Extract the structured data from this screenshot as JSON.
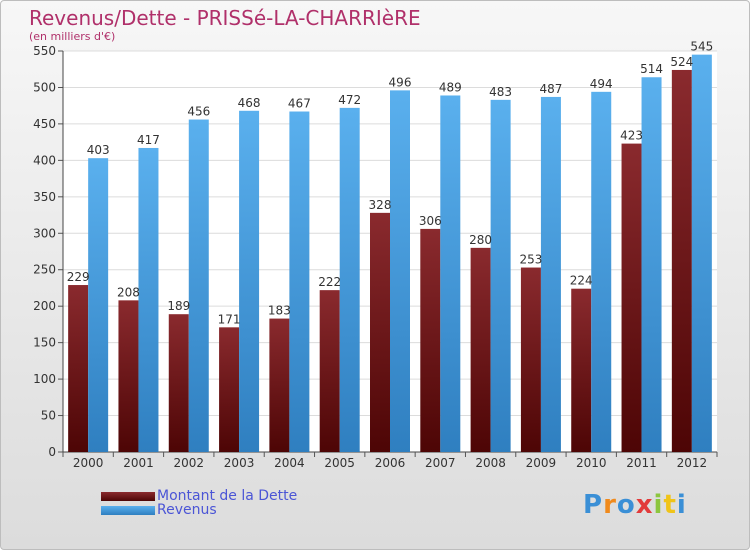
{
  "header": {
    "title": "Revenus/Dette - PRISSé-LA-CHARRIèRE",
    "subtitle": "(en milliers d'€)"
  },
  "logo": {
    "text": "Proxiti"
  },
  "colors": {
    "debt": "#7a1a1f",
    "revenue": "#4aa3e2",
    "title": "#b0306a",
    "legend_text": "#4b55d6"
  },
  "chart_data": {
    "type": "bar",
    "categories": [
      "2000",
      "2001",
      "2002",
      "2003",
      "2004",
      "2005",
      "2006",
      "2007",
      "2008",
      "2009",
      "2010",
      "2011",
      "2012"
    ],
    "series": [
      {
        "name": "Montant de la Dette",
        "values": [
          229,
          208,
          189,
          171,
          183,
          222,
          328,
          306,
          280,
          253,
          224,
          423,
          524
        ]
      },
      {
        "name": "Revenus",
        "values": [
          403,
          417,
          456,
          468,
          467,
          472,
          496,
          489,
          483,
          487,
          494,
          514,
          545
        ]
      }
    ],
    "ylim": [
      0,
      550
    ],
    "yticks": [
      0,
      50,
      100,
      150,
      200,
      250,
      300,
      350,
      400,
      450,
      500,
      550
    ],
    "grid": true,
    "legend": "bottom-left"
  }
}
